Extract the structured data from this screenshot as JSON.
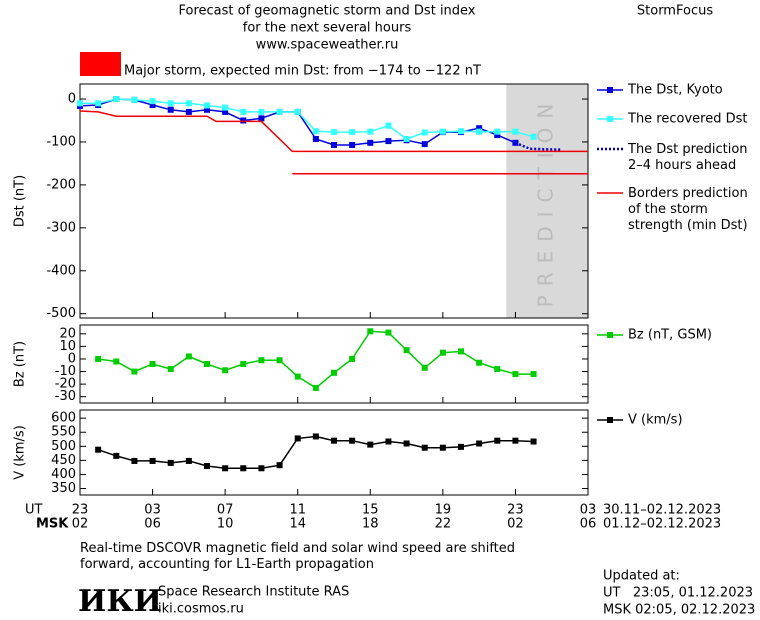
{
  "header": {
    "title_lines": [
      "Forecast of geomagnetic storm and Dst index",
      "for the next several hours",
      "www.spaceweather.ru"
    ],
    "brand": "StormFocus",
    "storm_color": "#ff0000",
    "storm_label": "Major storm, expected min Dst: from −174 to −122 nT"
  },
  "x_axis": {
    "xlim": [
      0,
      28
    ],
    "ut_label": "UT",
    "msk_label": "MSK",
    "ut_ticks": [
      {
        "value": 0,
        "label": "23"
      },
      {
        "value": 4,
        "label": "03"
      },
      {
        "value": 8,
        "label": "07"
      },
      {
        "value": 12,
        "label": "11"
      },
      {
        "value": 16,
        "label": "15"
      },
      {
        "value": 20,
        "label": "19"
      },
      {
        "value": 24,
        "label": "23"
      },
      {
        "value": 28,
        "label": "03"
      }
    ],
    "msk_ticks": [
      {
        "value": 0,
        "label": "02"
      },
      {
        "value": 4,
        "label": "06"
      },
      {
        "value": 8,
        "label": "10"
      },
      {
        "value": 12,
        "label": "14"
      },
      {
        "value": 16,
        "label": "18"
      },
      {
        "value": 20,
        "label": "22"
      },
      {
        "value": 24,
        "label": "02"
      },
      {
        "value": 28,
        "label": "06"
      }
    ],
    "ut_range": "30.11–02.12.2023",
    "msk_range": "01.12–02.12.2023"
  },
  "chart_data": [
    {
      "type": "line",
      "ylabel": "Dst (nT)",
      "ylim": [
        -510,
        35
      ],
      "yticks": [
        0,
        -100,
        -200,
        -300,
        -400,
        -500
      ],
      "prediction_region": [
        23.5,
        28
      ],
      "prediction_label": "PREDICTION",
      "x": [
        0,
        1,
        2,
        3,
        4,
        5,
        6,
        7,
        8,
        9,
        10,
        11,
        12,
        13,
        14,
        15,
        16,
        17,
        18,
        19,
        20,
        21,
        22,
        23,
        24,
        25
      ],
      "series": [
        {
          "name": "The Dst, Kyoto",
          "color": "#0000dd",
          "marker": "square",
          "values": [
            -16,
            -14,
            0,
            -2,
            -14,
            -25,
            -30,
            -25,
            -30,
            -50,
            -45,
            -30,
            -30,
            -93,
            -107,
            -107,
            -102,
            -98,
            -96,
            -105,
            -77,
            -77,
            -68,
            -84,
            -102,
            null
          ]
        },
        {
          "name": "The recovered Dst",
          "color": "#33ffff",
          "marker": "square",
          "values": [
            -10,
            -10,
            0,
            -2,
            -5,
            -10,
            -10,
            -15,
            -20,
            -30,
            -30,
            -30,
            -30,
            -75,
            -77,
            -77,
            -76,
            -62,
            -93,
            -78,
            -76,
            -75,
            -76,
            -76,
            -76,
            -88
          ]
        },
        {
          "name": "The Dst prediction\n2–4 hours ahead",
          "color": "#0000dd",
          "dash": "dotted",
          "x": [
            24,
            24.8,
            26.5
          ],
          "values": [
            -102,
            -116,
            -118
          ]
        },
        {
          "name": "Borders prediction\nof the storm\nstrength (min Dst)",
          "color": "#ee0000",
          "x": [
            0,
            1,
            2,
            7,
            7.5,
            10,
            11.7,
            28,
            null,
            11.7,
            28
          ],
          "values": [
            -28,
            -30,
            -40,
            -40,
            -52,
            -52,
            -122,
            -122,
            null,
            -174,
            -174
          ]
        }
      ]
    },
    {
      "type": "line",
      "ylabel": "Bz (nT)",
      "ylim": [
        -35,
        27
      ],
      "yticks": [
        20,
        10,
        0,
        -10,
        -20,
        -30
      ],
      "x": [
        1,
        2,
        3,
        4,
        5,
        6,
        7,
        8,
        9,
        10,
        11,
        12,
        13,
        14,
        15,
        16,
        17,
        18,
        19,
        20,
        21,
        22,
        23,
        24,
        25
      ],
      "series": [
        {
          "name": "Bz (nT, GSM)",
          "color": "#00cc00",
          "marker": "square",
          "values": [
            0,
            -2,
            -10,
            -4,
            -8,
            2,
            -4,
            -9,
            -4,
            -1,
            -1,
            -14,
            -23,
            -11,
            0,
            22,
            21,
            7,
            -7,
            5,
            6,
            -3,
            -8,
            -12,
            -12
          ]
        }
      ]
    },
    {
      "type": "line",
      "ylabel": "V (km/s)",
      "ylim": [
        327,
        629
      ],
      "yticks": [
        600,
        550,
        500,
        450,
        400,
        350
      ],
      "x": [
        1,
        2,
        3,
        4,
        5,
        6,
        7,
        8,
        9,
        10,
        11,
        12,
        13,
        14,
        15,
        16,
        17,
        18,
        19,
        20,
        21,
        22,
        23,
        24,
        25
      ],
      "series": [
        {
          "name": "V (km/s)",
          "color": "#000000",
          "marker": "square",
          "values": [
            488,
            466,
            448,
            448,
            441,
            448,
            430,
            422,
            422,
            422,
            433,
            528,
            535,
            520,
            520,
            506,
            517,
            510,
            495,
            495,
            498,
            510,
            520,
            520,
            517
          ]
        }
      ]
    }
  ],
  "footer": {
    "note": "Real-time DSCOVR magnetic field and solar wind speed are shifted\nforward, accounting for L1-Earth propagation",
    "logo": "ИКИ",
    "institute": "Space Research Institute RAS",
    "site": "iki.cosmos.ru",
    "updated_title": "Updated at:",
    "updated_ut": "UT   23:05, 01.12.2023",
    "updated_msk": "MSK 02:05, 02.12.2023"
  }
}
